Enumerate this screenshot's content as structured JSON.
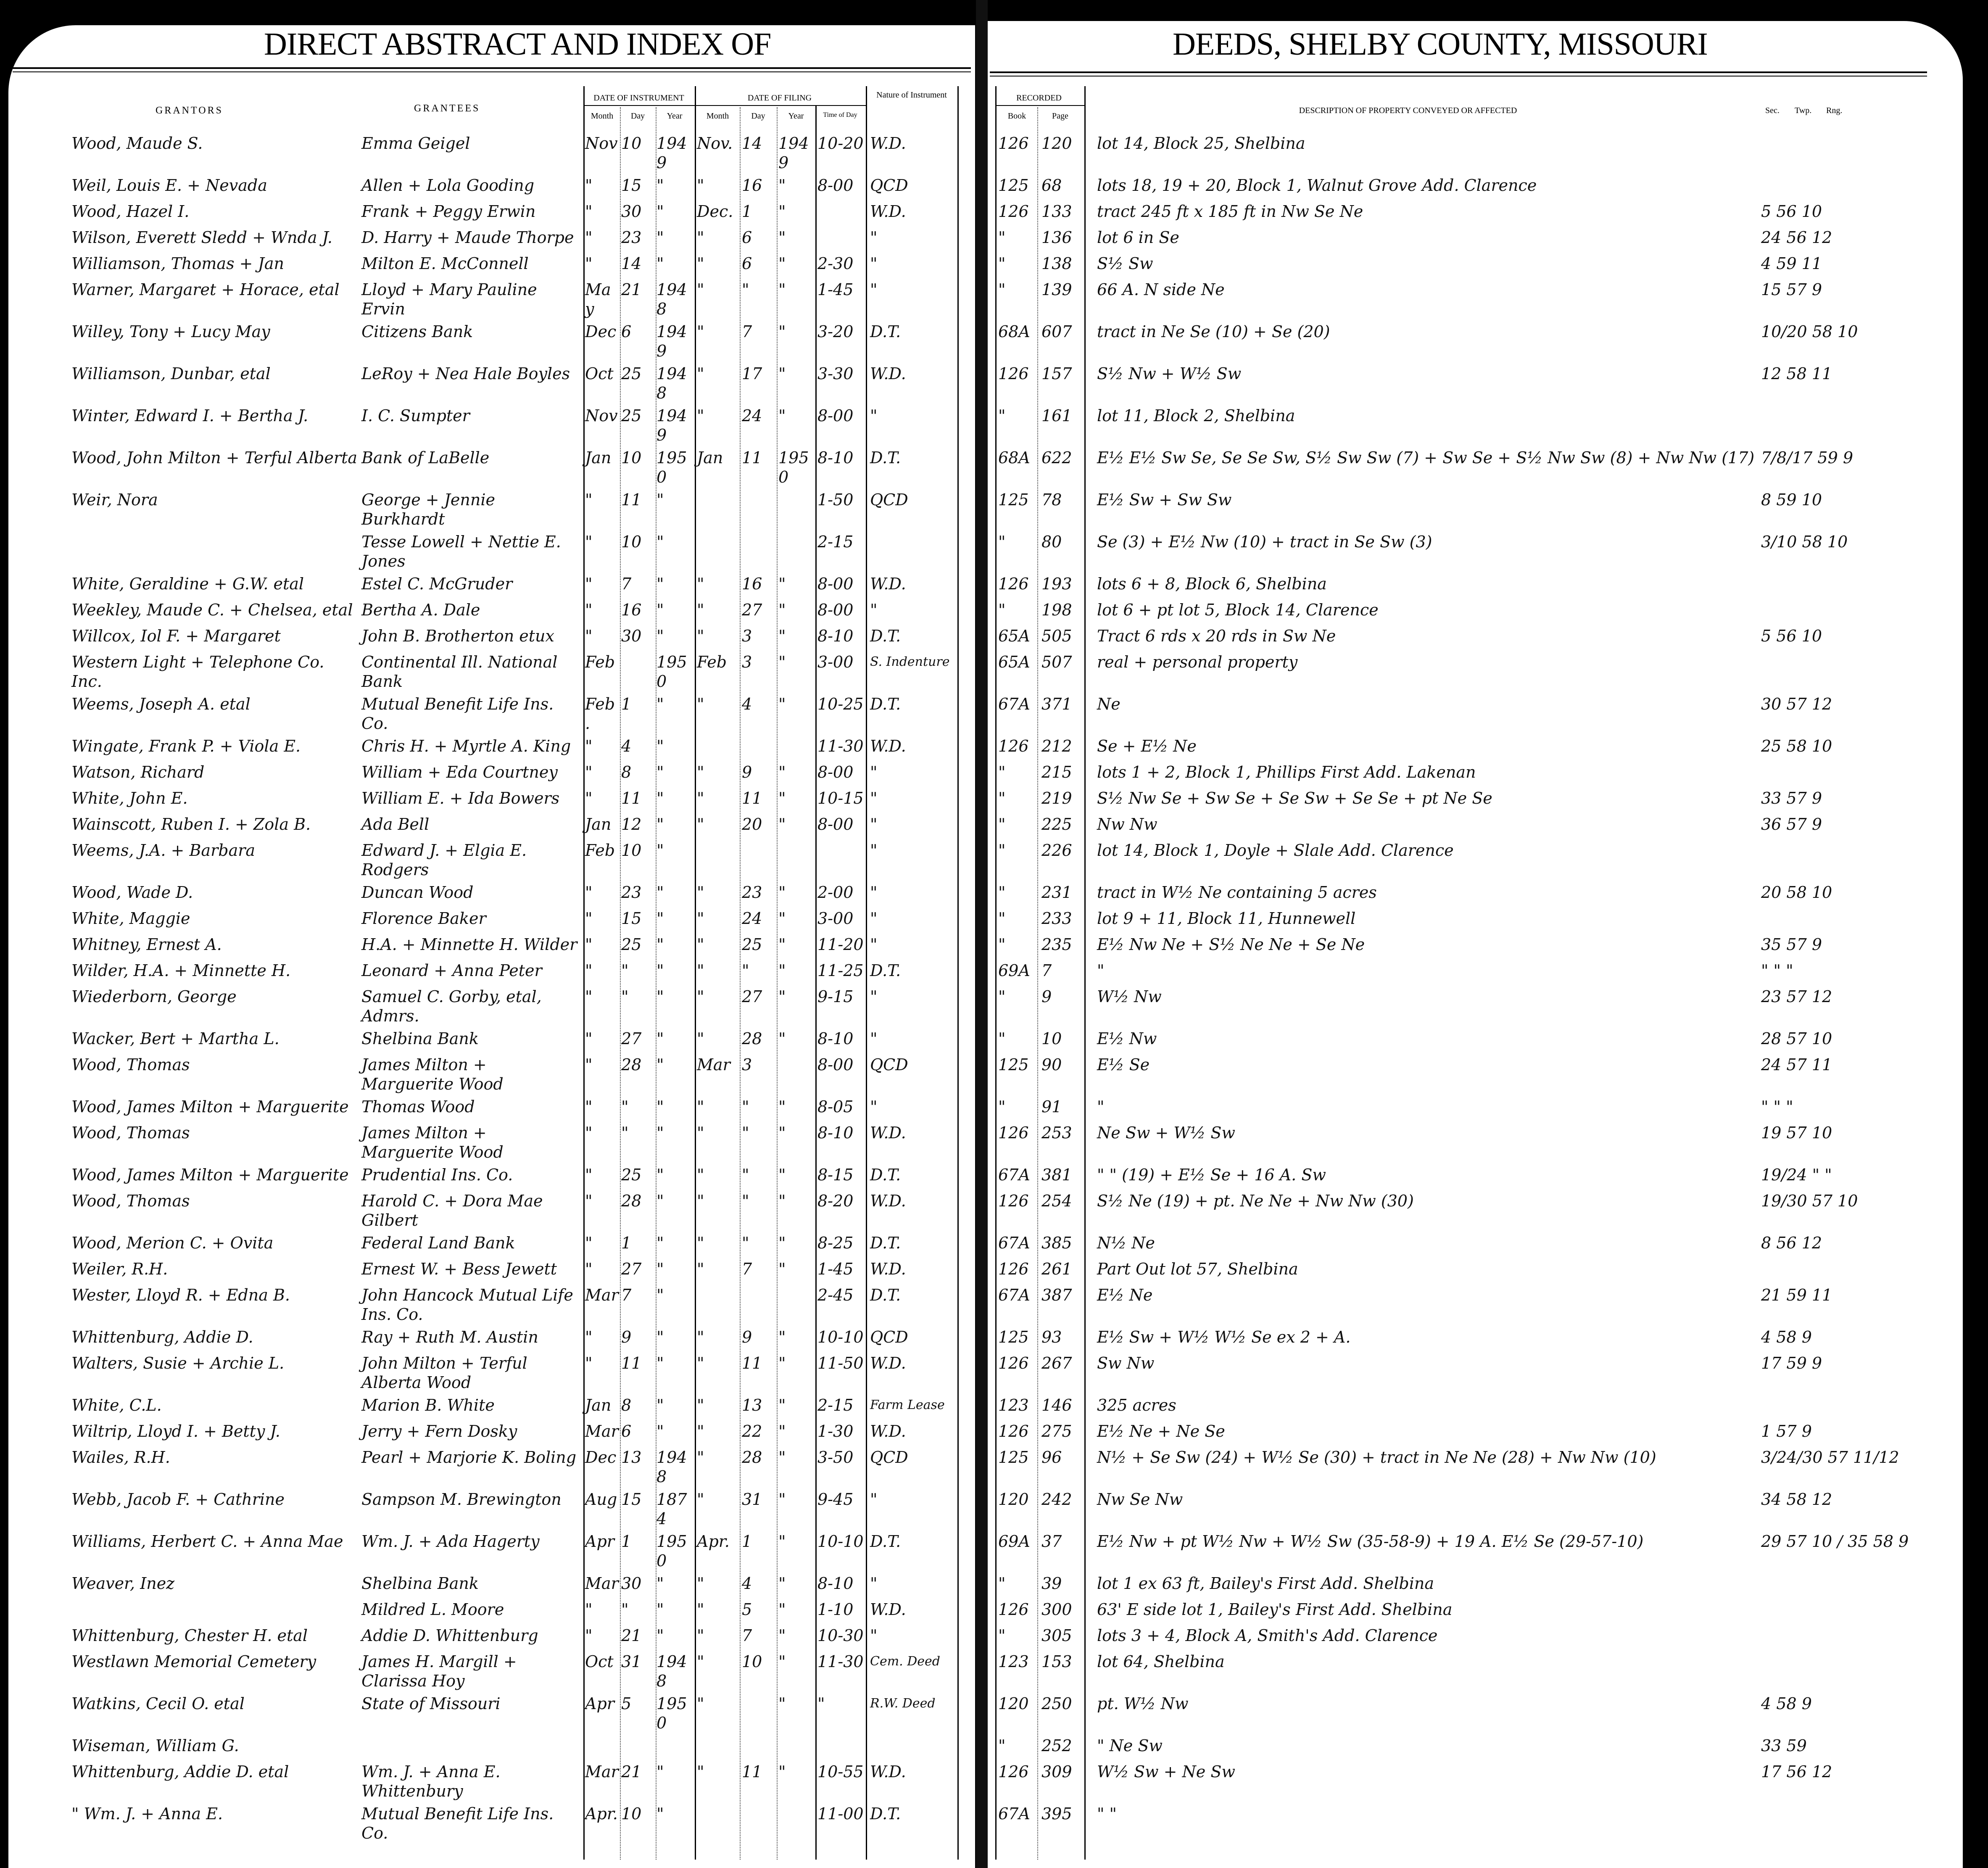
{
  "header": {
    "left_title": "DIRECT ABSTRACT AND INDEX OF",
    "right_title": "DEEDS, SHELBY COUNTY, MISSOURI",
    "grantors": "GRANTORS",
    "grantees": "GRANTEES",
    "date_of_instrument": "DATE OF INSTRUMENT",
    "date_of_filing": "DATE OF FILING",
    "month": "Month",
    "day": "Day",
    "year": "Year",
    "time_of_day": "Time of Day",
    "nature": "Nature of Instrument",
    "recorded": "RECORDED",
    "book": "Book",
    "page": "Page",
    "description": "DESCRIPTION OF PROPERTY CONVEYED OR AFFECTED",
    "sec": "Sec.",
    "twp": "Twp.",
    "rng": "Rng."
  },
  "rows": [
    {
      "grantor": "Wood, Maude S.",
      "grantee": "Emma Geigel",
      "im": "Nov",
      "id": "10",
      "iy": "1949",
      "fm": "Nov.",
      "fd": "14",
      "fy": "1949",
      "time": "10-20",
      "nature": "W.D.",
      "book": "126",
      "page": "120",
      "desc": "lot 14, Block 25, Shelbina",
      "str": ""
    },
    {
      "grantor": "Weil, Louis E. + Nevada",
      "grantee": "Allen + Lola Gooding",
      "im": "\"",
      "id": "15",
      "iy": "\"",
      "fm": "\"",
      "fd": "16",
      "fy": "\"",
      "time": "8-00",
      "nature": "QCD",
      "book": "125",
      "page": "68",
      "desc": "lots 18, 19 + 20, Block 1, Walnut Grove Add. Clarence",
      "str": ""
    },
    {
      "grantor": "Wood, Hazel I.",
      "grantee": "Frank + Peggy Erwin",
      "im": "\"",
      "id": "30",
      "iy": "\"",
      "fm": "Dec.",
      "fd": "1",
      "fy": "\"",
      "time": "",
      "nature": "W.D.",
      "book": "126",
      "page": "133",
      "desc": "tract 245 ft x 185 ft in Nw Se Ne",
      "str": "5 56 10"
    },
    {
      "grantor": "Wilson, Everett Sledd + Wnda J.",
      "grantee": "D. Harry + Maude Thorpe",
      "im": "\"",
      "id": "23",
      "iy": "\"",
      "fm": "\"",
      "fd": "6",
      "fy": "\"",
      "time": "",
      "nature": "\"",
      "book": "\"",
      "page": "136",
      "desc": "lot 6 in Se",
      "str": "24 56 12"
    },
    {
      "grantor": "Williamson, Thomas + Jan",
      "grantee": "Milton E. McConnell",
      "im": "\"",
      "id": "14",
      "iy": "\"",
      "fm": "\"",
      "fd": "6",
      "fy": "\"",
      "time": "2-30",
      "nature": "\"",
      "book": "\"",
      "page": "138",
      "desc": "S½ Sw",
      "str": "4 59 11"
    },
    {
      "grantor": "Warner, Margaret + Horace, etal",
      "grantee": "Lloyd + Mary Pauline Ervin",
      "im": "May",
      "id": "21",
      "iy": "1948",
      "fm": "\"",
      "fd": "\"",
      "fy": "\"",
      "time": "1-45",
      "nature": "\"",
      "book": "\"",
      "page": "139",
      "desc": "66 A. N side Ne",
      "str": "15 57 9"
    },
    {
      "grantor": "Willey, Tony + Lucy May",
      "grantee": "Citizens Bank",
      "im": "Dec",
      "id": "6",
      "iy": "1949",
      "fm": "\"",
      "fd": "7",
      "fy": "\"",
      "time": "3-20",
      "nature": "D.T.",
      "book": "68A",
      "page": "607",
      "desc": "tract in Ne Se (10) + Se (20)",
      "str": "10/20 58 10"
    },
    {
      "grantor": "Williamson, Dunbar, etal",
      "grantee": "LeRoy + Nea Hale Boyles",
      "im": "Oct",
      "id": "25",
      "iy": "1948",
      "fm": "\"",
      "fd": "17",
      "fy": "\"",
      "time": "3-30",
      "nature": "W.D.",
      "book": "126",
      "page": "157",
      "desc": "S½ Nw + W½ Sw",
      "str": "12 58 11"
    },
    {
      "grantor": "Winter, Edward I. + Bertha J.",
      "grantee": "I. C. Sumpter",
      "im": "Nov",
      "id": "25",
      "iy": "1949",
      "fm": "\"",
      "fd": "24",
      "fy": "\"",
      "time": "8-00",
      "nature": "\"",
      "book": "\"",
      "page": "161",
      "desc": "lot 11, Block 2, Shelbina",
      "str": ""
    },
    {
      "grantor": "Wood, John Milton + Terful Alberta",
      "grantee": "Bank of LaBelle",
      "im": "Jan",
      "id": "10",
      "iy": "1950",
      "fm": "Jan",
      "fd": "11",
      "fy": "1950",
      "time": "8-10",
      "nature": "D.T.",
      "book": "68A",
      "page": "622",
      "desc": "E½ E½ Sw Se, Se Se Sw, S½ Sw Sw (7) + Sw Se + S½ Nw Sw (8) + Nw Nw (17)",
      "str": "7/8/17 59 9"
    },
    {
      "grantor": "Weir, Nora",
      "grantee": "George + Jennie Burkhardt",
      "im": "\"",
      "id": "11",
      "iy": "\"",
      "fm": "",
      "fd": "",
      "fy": "",
      "time": "1-50",
      "nature": "QCD",
      "book": "125",
      "page": "78",
      "desc": "E½ Sw + Sw Sw",
      "str": "8 59 10"
    },
    {
      "grantor": "",
      "grantee": "Tesse Lowell + Nettie E. Jones",
      "im": "\"",
      "id": "10",
      "iy": "\"",
      "fm": "",
      "fd": "",
      "fy": "",
      "time": "2-15",
      "nature": "",
      "book": "\"",
      "page": "80",
      "desc": "Se (3) + E½ Nw (10) + tract in Se Sw (3)",
      "str": "3/10 58 10"
    },
    {
      "grantor": "White, Geraldine + G.W. etal",
      "grantee": "Estel C. McGruder",
      "im": "\"",
      "id": "7",
      "iy": "\"",
      "fm": "\"",
      "fd": "16",
      "fy": "\"",
      "time": "8-00",
      "nature": "W.D.",
      "book": "126",
      "page": "193",
      "desc": "lots 6 + 8, Block 6, Shelbina",
      "str": ""
    },
    {
      "grantor": "Weekley, Maude C. + Chelsea, etal",
      "grantee": "Bertha A. Dale",
      "im": "\"",
      "id": "16",
      "iy": "\"",
      "fm": "\"",
      "fd": "27",
      "fy": "\"",
      "time": "8-00",
      "nature": "\"",
      "book": "\"",
      "page": "198",
      "desc": "lot 6 + pt lot 5, Block 14, Clarence",
      "str": ""
    },
    {
      "grantor": "Willcox, Iol F. + Margaret",
      "grantee": "John B. Brotherton etux",
      "im": "\"",
      "id": "30",
      "iy": "\"",
      "fm": "\"",
      "fd": "3",
      "fy": "\"",
      "time": "8-10",
      "nature": "D.T.",
      "book": "65A",
      "page": "505",
      "desc": "Tract 6 rds x 20 rds in Sw Ne",
      "str": "5 56 10"
    },
    {
      "grantor": "Western Light + Telephone Co. Inc.",
      "grantee": "Continental Ill. National Bank",
      "im": "Feb",
      "id": "",
      "iy": "1950",
      "fm": "Feb",
      "fd": "3",
      "fy": "\"",
      "time": "3-00",
      "nature": "S. Indenture",
      "book": "65A",
      "page": "507",
      "desc": "real + personal property",
      "str": ""
    },
    {
      "grantor": "Weems, Joseph A. etal",
      "grantee": "Mutual Benefit Life Ins. Co.",
      "im": "Feb.",
      "id": "1",
      "iy": "\"",
      "fm": "\"",
      "fd": "4",
      "fy": "\"",
      "time": "10-25",
      "nature": "D.T.",
      "book": "67A",
      "page": "371",
      "desc": "Ne",
      "str": "30 57 12"
    },
    {
      "grantor": "Wingate, Frank P. + Viola E.",
      "grantee": "Chris H. + Myrtle A. King",
      "im": "\"",
      "id": "4",
      "iy": "\"",
      "fm": "",
      "fd": "",
      "fy": "",
      "time": "11-30",
      "nature": "W.D.",
      "book": "126",
      "page": "212",
      "desc": "Se + E½ Ne",
      "str": "25 58 10"
    },
    {
      "grantor": "Watson, Richard",
      "grantee": "William + Eda Courtney",
      "im": "\"",
      "id": "8",
      "iy": "\"",
      "fm": "\"",
      "fd": "9",
      "fy": "\"",
      "time": "8-00",
      "nature": "\"",
      "book": "\"",
      "page": "215",
      "desc": "lots 1 + 2, Block 1, Phillips First Add. Lakenan",
      "str": ""
    },
    {
      "grantor": "White, John E.",
      "grantee": "William E. + Ida Bowers",
      "im": "\"",
      "id": "11",
      "iy": "\"",
      "fm": "\"",
      "fd": "11",
      "fy": "\"",
      "time": "10-15",
      "nature": "\"",
      "book": "\"",
      "page": "219",
      "desc": "S½ Nw Se + Sw Se + Se Sw + Se Se + pt Ne Se",
      "str": "33 57 9"
    },
    {
      "grantor": "Wainscott, Ruben I. + Zola B.",
      "grantee": "Ada Bell",
      "im": "Jan",
      "id": "12",
      "iy": "\"",
      "fm": "\"",
      "fd": "20",
      "fy": "\"",
      "time": "8-00",
      "nature": "\"",
      "book": "\"",
      "page": "225",
      "desc": "Nw Nw",
      "str": "36 57 9"
    },
    {
      "grantor": "Weems, J.A. + Barbara",
      "grantee": "Edward J. + Elgia E. Rodgers",
      "im": "Feb",
      "id": "10",
      "iy": "\"",
      "fm": "",
      "fd": "",
      "fy": "",
      "time": "",
      "nature": "\"",
      "book": "\"",
      "page": "226",
      "desc": "lot 14, Block 1, Doyle + Slale Add. Clarence",
      "str": ""
    },
    {
      "grantor": "Wood, Wade D.",
      "grantee": "Duncan Wood",
      "im": "\"",
      "id": "23",
      "iy": "\"",
      "fm": "\"",
      "fd": "23",
      "fy": "\"",
      "time": "2-00",
      "nature": "\"",
      "book": "\"",
      "page": "231",
      "desc": "tract in W½ Ne containing 5 acres",
      "str": "20 58 10"
    },
    {
      "grantor": "White, Maggie",
      "grantee": "Florence Baker",
      "im": "\"",
      "id": "15",
      "iy": "\"",
      "fm": "\"",
      "fd": "24",
      "fy": "\"",
      "time": "3-00",
      "nature": "\"",
      "book": "\"",
      "page": "233",
      "desc": "lot 9 + 11, Block 11, Hunnewell",
      "str": ""
    },
    {
      "grantor": "Whitney, Ernest A.",
      "grantee": "H.A. + Minnette H. Wilder",
      "im": "\"",
      "id": "25",
      "iy": "\"",
      "fm": "\"",
      "fd": "25",
      "fy": "\"",
      "time": "11-20",
      "nature": "\"",
      "book": "\"",
      "page": "235",
      "desc": "E½ Nw Ne + S½ Ne Ne + Se Ne",
      "str": "35 57 9"
    },
    {
      "grantor": "Wilder, H.A. + Minnette H.",
      "grantee": "Leonard + Anna Peter",
      "im": "\"",
      "id": "\"",
      "iy": "\"",
      "fm": "\"",
      "fd": "\"",
      "fy": "\"",
      "time": "11-25",
      "nature": "D.T.",
      "book": "69A",
      "page": "7",
      "desc": "\"",
      "str": "\" \" \""
    },
    {
      "grantor": "Wiederborn, George",
      "grantee": "Samuel C. Gorby, etal, Admrs.",
      "im": "\"",
      "id": "\"",
      "iy": "\"",
      "fm": "\"",
      "fd": "27",
      "fy": "\"",
      "time": "9-15",
      "nature": "\"",
      "book": "\"",
      "page": "9",
      "desc": "W½ Nw",
      "str": "23 57 12"
    },
    {
      "grantor": "Wacker, Bert + Martha L.",
      "grantee": "Shelbina Bank",
      "im": "\"",
      "id": "27",
      "iy": "\"",
      "fm": "\"",
      "fd": "28",
      "fy": "\"",
      "time": "8-10",
      "nature": "\"",
      "book": "\"",
      "page": "10",
      "desc": "E½ Nw",
      "str": "28 57 10"
    },
    {
      "grantor": "Wood, Thomas",
      "grantee": "James Milton + Marguerite Wood",
      "im": "\"",
      "id": "28",
      "iy": "\"",
      "fm": "Mar",
      "fd": "3",
      "fy": "",
      "time": "8-00",
      "nature": "QCD",
      "book": "125",
      "page": "90",
      "desc": "E½ Se",
      "str": "24 57 11"
    },
    {
      "grantor": "Wood, James Milton + Marguerite",
      "grantee": "Thomas Wood",
      "im": "\"",
      "id": "\"",
      "iy": "\"",
      "fm": "\"",
      "fd": "\"",
      "fy": "\"",
      "time": "8-05",
      "nature": "\"",
      "book": "\"",
      "page": "91",
      "desc": "\"",
      "str": "\" \" \""
    },
    {
      "grantor": "Wood, Thomas",
      "grantee": "James Milton + Marguerite Wood",
      "im": "\"",
      "id": "\"",
      "iy": "\"",
      "fm": "\"",
      "fd": "\"",
      "fy": "\"",
      "time": "8-10",
      "nature": "W.D.",
      "book": "126",
      "page": "253",
      "desc": "Ne Sw + W½ Sw",
      "str": "19 57 10"
    },
    {
      "grantor": "Wood, James Milton + Marguerite",
      "grantee": "Prudential Ins. Co.",
      "im": "\"",
      "id": "25",
      "iy": "\"",
      "fm": "\"",
      "fd": "\"",
      "fy": "\"",
      "time": "8-15",
      "nature": "D.T.",
      "book": "67A",
      "page": "381",
      "desc": "\"  \"  (19) + E½ Se + 16 A. Sw",
      "str": "19/24 \" \""
    },
    {
      "grantor": "Wood, Thomas",
      "grantee": "Harold C. + Dora Mae Gilbert",
      "im": "\"",
      "id": "28",
      "iy": "\"",
      "fm": "\"",
      "fd": "\"",
      "fy": "\"",
      "time": "8-20",
      "nature": "W.D.",
      "book": "126",
      "page": "254",
      "desc": "S½ Ne (19) + pt. Ne Ne + Nw Nw (30)",
      "str": "19/30 57 10"
    },
    {
      "grantor": "Wood, Merion C. + Ovita",
      "grantee": "Federal Land Bank",
      "im": "\"",
      "id": "1",
      "iy": "\"",
      "fm": "\"",
      "fd": "\"",
      "fy": "\"",
      "time": "8-25",
      "nature": "D.T.",
      "book": "67A",
      "page": "385",
      "desc": "N½ Ne",
      "str": "8 56 12"
    },
    {
      "grantor": "Weiler, R.H.",
      "grantee": "Ernest W. + Bess Jewett",
      "im": "\"",
      "id": "27",
      "iy": "\"",
      "fm": "\"",
      "fd": "7",
      "fy": "\"",
      "time": "1-45",
      "nature": "W.D.",
      "book": "126",
      "page": "261",
      "desc": "Part Out lot 57, Shelbina",
      "str": ""
    },
    {
      "grantor": "Wester, Lloyd R. + Edna B.",
      "grantee": "John Hancock Mutual Life Ins. Co.",
      "im": "Mar",
      "id": "7",
      "iy": "\"",
      "fm": "",
      "fd": "",
      "fy": "",
      "time": "2-45",
      "nature": "D.T.",
      "book": "67A",
      "page": "387",
      "desc": "E½ Ne",
      "str": "21 59 11"
    },
    {
      "grantor": "Whittenburg, Addie D.",
      "grantee": "Ray + Ruth M. Austin",
      "im": "\"",
      "id": "9",
      "iy": "\"",
      "fm": "\"",
      "fd": "9",
      "fy": "\"",
      "time": "10-10",
      "nature": "QCD",
      "book": "125",
      "page": "93",
      "desc": "E½ Sw + W½ W½ Se ex 2 + A.",
      "str": "4 58 9"
    },
    {
      "grantor": "Walters, Susie + Archie L.",
      "grantee": "John Milton + Terful Alberta Wood",
      "im": "\"",
      "id": "11",
      "iy": "\"",
      "fm": "\"",
      "fd": "11",
      "fy": "\"",
      "time": "11-50",
      "nature": "W.D.",
      "book": "126",
      "page": "267",
      "desc": "Sw Nw",
      "str": "17 59 9"
    },
    {
      "grantor": "White, C.L.",
      "grantee": "Marion B. White",
      "im": "Jan",
      "id": "8",
      "iy": "\"",
      "fm": "\"",
      "fd": "13",
      "fy": "\"",
      "time": "2-15",
      "nature": "Farm Lease",
      "book": "123",
      "page": "146",
      "desc": "325 acres",
      "str": ""
    },
    {
      "grantor": "Wiltrip, Lloyd I. + Betty J.",
      "grantee": "Jerry + Fern Dosky",
      "im": "Mar",
      "id": "6",
      "iy": "\"",
      "fm": "\"",
      "fd": "22",
      "fy": "\"",
      "time": "1-30",
      "nature": "W.D.",
      "book": "126",
      "page": "275",
      "desc": "E½ Ne + Ne Se",
      "str": "1 57 9"
    },
    {
      "grantor": "Wailes, R.H.",
      "grantee": "Pearl + Marjorie K. Boling",
      "im": "Dec",
      "id": "13",
      "iy": "1948",
      "fm": "\"",
      "fd": "28",
      "fy": "\"",
      "time": "3-50",
      "nature": "QCD",
      "book": "125",
      "page": "96",
      "desc": "N½ + Se Sw (24) + W½ Se (30) + tract in Ne Ne (28) + Nw Nw (10)",
      "str": "3/24/30 57 11/12"
    },
    {
      "grantor": "Webb, Jacob F. + Cathrine",
      "grantee": "Sampson M. Brewington",
      "im": "Aug",
      "id": "15",
      "iy": "1874",
      "fm": "\"",
      "fd": "31",
      "fy": "\"",
      "time": "9-45",
      "nature": "\"",
      "book": "120",
      "page": "242",
      "desc": "Nw Se Nw",
      "str": "34 58 12"
    },
    {
      "grantor": "Williams, Herbert C. + Anna Mae",
      "grantee": "Wm. J. + Ada Hagerty",
      "im": "Apr",
      "id": "1",
      "iy": "1950",
      "fm": "Apr.",
      "fd": "1",
      "fy": "\"",
      "time": "10-10",
      "nature": "D.T.",
      "book": "69A",
      "page": "37",
      "desc": "E½ Nw + pt W½ Nw + W½ Sw (35-58-9) + 19 A. E½ Se (29-57-10)",
      "str": "29 57 10 / 35 58 9"
    },
    {
      "grantor": "Weaver, Inez",
      "grantee": "Shelbina Bank",
      "im": "Mar",
      "id": "30",
      "iy": "\"",
      "fm": "\"",
      "fd": "4",
      "fy": "\"",
      "time": "8-10",
      "nature": "\"",
      "book": "\"",
      "page": "39",
      "desc": "lot 1 ex 63 ft, Bailey's First Add. Shelbina",
      "str": ""
    },
    {
      "grantor": "",
      "grantee": "Mildred L. Moore",
      "im": "\"",
      "id": "\"",
      "iy": "\"",
      "fm": "\"",
      "fd": "5",
      "fy": "\"",
      "time": "1-10",
      "nature": "W.D.",
      "book": "126",
      "page": "300",
      "desc": "63' E side lot 1, Bailey's First Add. Shelbina",
      "str": ""
    },
    {
      "grantor": "Whittenburg, Chester H. etal",
      "grantee": "Addie D. Whittenburg",
      "im": "\"",
      "id": "21",
      "iy": "\"",
      "fm": "\"",
      "fd": "7",
      "fy": "\"",
      "time": "10-30",
      "nature": "\"",
      "book": "\"",
      "page": "305",
      "desc": "lots 3 + 4, Block A, Smith's Add. Clarence",
      "str": ""
    },
    {
      "grantor": "Westlawn Memorial Cemetery",
      "grantee": "James H. Margill + Clarissa Hoy",
      "im": "Oct",
      "id": "31",
      "iy": "1948",
      "fm": "\"",
      "fd": "10",
      "fy": "\"",
      "time": "11-30",
      "nature": "Cem. Deed",
      "book": "123",
      "page": "153",
      "desc": "lot 64, Shelbina",
      "str": ""
    },
    {
      "grantor": "Watkins, Cecil O. etal",
      "grantee": "State of Missouri",
      "im": "Apr",
      "id": "5",
      "iy": "1950",
      "fm": "\"",
      "fd": "",
      "fy": "\"",
      "time": "\"",
      "nature": "R.W. Deed",
      "book": "120",
      "page": "250",
      "desc": "pt. W½ Nw",
      "str": "4 58 9"
    },
    {
      "grantor": "Wiseman, William G.",
      "grantee": "",
      "im": "",
      "id": "",
      "iy": "",
      "fm": "",
      "fd": "",
      "fy": "",
      "time": "",
      "nature": "",
      "book": "\"",
      "page": "252",
      "desc": "\"  Ne Sw",
      "str": "33 59"
    },
    {
      "grantor": "Whittenburg, Addie D. etal",
      "grantee": "Wm. J. + Anna E. Whittenbury",
      "im": "Mar",
      "id": "21",
      "iy": "\"",
      "fm": "\"",
      "fd": "11",
      "fy": "\"",
      "time": "10-55",
      "nature": "W.D.",
      "book": "126",
      "page": "309",
      "desc": "W½ Sw + Ne Sw",
      "str": "17 56 12"
    },
    {
      "grantor": "\"  Wm. J. + Anna E.",
      "grantee": "Mutual Benefit Life Ins. Co.",
      "im": "Apr.",
      "id": "10",
      "iy": "\"",
      "fm": "",
      "fd": "",
      "fy": "",
      "time": "11-00",
      "nature": "D.T.",
      "book": "67A",
      "page": "395",
      "desc": "\"  \"",
      "str": ""
    }
  ]
}
